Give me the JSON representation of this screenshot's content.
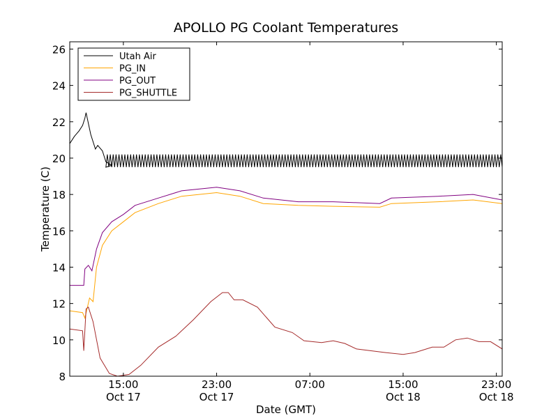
{
  "chart_data": {
    "type": "line",
    "title": "APOLLO PG Coolant Temperatures",
    "xlabel": "Date (GMT)",
    "ylabel": "Temperature (C)",
    "xlim": [
      "2011-10-17 10:24",
      "2011-10-18 23:30"
    ],
    "ylim": [
      8,
      26.4
    ],
    "y_ticks": [
      8,
      10,
      12,
      14,
      16,
      18,
      20,
      22,
      24,
      26
    ],
    "x_ticks": [
      {
        "at": "2011-10-17 15:00",
        "time": "15:00",
        "date": "Oct 17"
      },
      {
        "at": "2011-10-17 23:00",
        "time": "23:00",
        "date": "Oct 17"
      },
      {
        "at": "2011-10-18 07:00",
        "time": "07:00",
        "date": ""
      },
      {
        "at": "2011-10-18 15:00",
        "time": "15:00",
        "date": "Oct 18"
      },
      {
        "at": "2011-10-18 23:00",
        "time": "23:00",
        "date": "Oct 18"
      }
    ],
    "grid": false,
    "legend_position": "top-left",
    "series": [
      {
        "name": "Utah Air",
        "color": "#000000",
        "oscillation": {
          "start": "2011-10-17 13:30",
          "low": 19.5,
          "high": 20.2,
          "period_minutes": 15
        },
        "points": [
          [
            "2011-10-17 10:24",
            20.8
          ],
          [
            "2011-10-17 10:48",
            21.2
          ],
          [
            "2011-10-17 11:12",
            21.5
          ],
          [
            "2011-10-17 11:30",
            21.8
          ],
          [
            "2011-10-17 11:42",
            22.2
          ],
          [
            "2011-10-17 11:48",
            22.5
          ],
          [
            "2011-10-17 12:12",
            21.3
          ],
          [
            "2011-10-17 12:36",
            20.5
          ],
          [
            "2011-10-17 12:48",
            20.7
          ],
          [
            "2011-10-17 13:12",
            20.4
          ],
          [
            "2011-10-17 13:30",
            19.8
          ],
          [
            "2011-10-17 14:00",
            19.6
          ]
        ]
      },
      {
        "name": "PG_IN",
        "color": "#ffa500",
        "points": [
          [
            "2011-10-17 10:24",
            11.6
          ],
          [
            "2011-10-17 11:30",
            11.5
          ],
          [
            "2011-10-17 11:42",
            11.2
          ],
          [
            "2011-10-17 12:06",
            12.3
          ],
          [
            "2011-10-17 12:24",
            12.1
          ],
          [
            "2011-10-17 12:42",
            14.0
          ],
          [
            "2011-10-17 13:12",
            15.2
          ],
          [
            "2011-10-17 14:00",
            16.0
          ],
          [
            "2011-10-17 15:00",
            16.5
          ],
          [
            "2011-10-17 16:00",
            17.0
          ],
          [
            "2011-10-17 18:00",
            17.5
          ],
          [
            "2011-10-17 20:00",
            17.9
          ],
          [
            "2011-10-17 23:00",
            18.1
          ],
          [
            "2011-10-18 01:00",
            17.9
          ],
          [
            "2011-10-18 03:00",
            17.5
          ],
          [
            "2011-10-18 06:00",
            17.4
          ],
          [
            "2011-10-18 09:00",
            17.35
          ],
          [
            "2011-10-18 13:00",
            17.3
          ],
          [
            "2011-10-18 14:00",
            17.5
          ],
          [
            "2011-10-18 18:00",
            17.6
          ],
          [
            "2011-10-18 21:00",
            17.7
          ],
          [
            "2011-10-18 23:30",
            17.5
          ]
        ]
      },
      {
        "name": "PG_OUT",
        "color": "#800080",
        "points": [
          [
            "2011-10-17 10:24",
            13.0
          ],
          [
            "2011-10-17 11:36",
            13.0
          ],
          [
            "2011-10-17 11:42",
            13.9
          ],
          [
            "2011-10-17 12:00",
            14.1
          ],
          [
            "2011-10-17 12:18",
            13.8
          ],
          [
            "2011-10-17 12:42",
            15.0
          ],
          [
            "2011-10-17 13:12",
            15.9
          ],
          [
            "2011-10-17 14:00",
            16.5
          ],
          [
            "2011-10-17 15:00",
            16.9
          ],
          [
            "2011-10-17 16:00",
            17.4
          ],
          [
            "2011-10-17 18:00",
            17.8
          ],
          [
            "2011-10-17 20:00",
            18.2
          ],
          [
            "2011-10-17 23:00",
            18.4
          ],
          [
            "2011-10-18 01:00",
            18.2
          ],
          [
            "2011-10-18 03:00",
            17.8
          ],
          [
            "2011-10-18 06:00",
            17.6
          ],
          [
            "2011-10-18 09:00",
            17.6
          ],
          [
            "2011-10-18 13:00",
            17.5
          ],
          [
            "2011-10-18 14:00",
            17.8
          ],
          [
            "2011-10-18 18:00",
            17.9
          ],
          [
            "2011-10-18 21:00",
            18.0
          ],
          [
            "2011-10-18 23:30",
            17.7
          ]
        ]
      },
      {
        "name": "PG_SHUTTLE",
        "color": "#a52a2a",
        "points": [
          [
            "2011-10-17 10:24",
            10.6
          ],
          [
            "2011-10-17 11:30",
            10.5
          ],
          [
            "2011-10-17 11:36",
            9.4
          ],
          [
            "2011-10-17 11:48",
            11.7
          ],
          [
            "2011-10-17 12:00",
            11.8
          ],
          [
            "2011-10-17 12:24",
            11.0
          ],
          [
            "2011-10-17 13:00",
            9.0
          ],
          [
            "2011-10-17 13:48",
            8.15
          ],
          [
            "2011-10-17 14:30",
            8.0
          ],
          [
            "2011-10-17 15:30",
            8.1
          ],
          [
            "2011-10-17 16:30",
            8.6
          ],
          [
            "2011-10-17 18:00",
            9.6
          ],
          [
            "2011-10-17 19:30",
            10.2
          ],
          [
            "2011-10-17 21:00",
            11.1
          ],
          [
            "2011-10-17 22:30",
            12.1
          ],
          [
            "2011-10-17 23:30",
            12.6
          ],
          [
            "2011-10-18 00:00",
            12.6
          ],
          [
            "2011-10-18 00:30",
            12.2
          ],
          [
            "2011-10-18 01:15",
            12.2
          ],
          [
            "2011-10-18 02:30",
            11.8
          ],
          [
            "2011-10-18 04:00",
            10.7
          ],
          [
            "2011-10-18 05:30",
            10.4
          ],
          [
            "2011-10-18 06:30",
            9.95
          ],
          [
            "2011-10-18 08:00",
            9.85
          ],
          [
            "2011-10-18 09:00",
            9.95
          ],
          [
            "2011-10-18 10:00",
            9.8
          ],
          [
            "2011-10-18 11:00",
            9.5
          ],
          [
            "2011-10-18 13:30",
            9.3
          ],
          [
            "2011-10-18 15:00",
            9.2
          ],
          [
            "2011-10-18 16:00",
            9.3
          ],
          [
            "2011-10-18 17:30",
            9.6
          ],
          [
            "2011-10-18 18:30",
            9.6
          ],
          [
            "2011-10-18 19:30",
            10.0
          ],
          [
            "2011-10-18 20:30",
            10.1
          ],
          [
            "2011-10-18 21:30",
            9.9
          ],
          [
            "2011-10-18 22:30",
            9.9
          ],
          [
            "2011-10-18 23:30",
            9.5
          ]
        ]
      }
    ]
  }
}
